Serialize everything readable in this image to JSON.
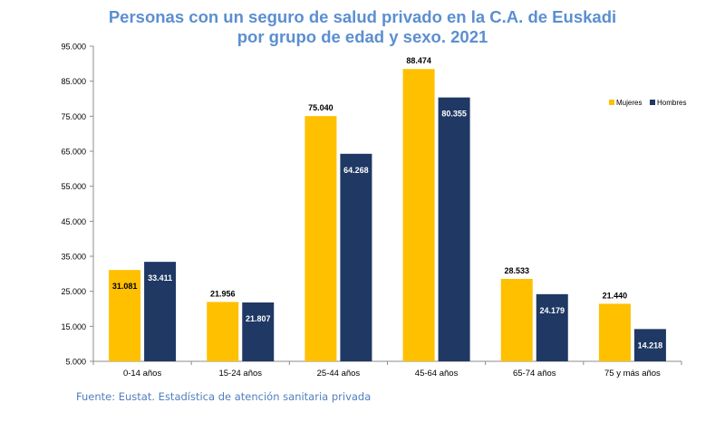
{
  "chart_data": {
    "type": "bar",
    "title_lines": [
      "Personas con un seguro de salud privado en la C.A. de Euskadi",
      "por grupo de edad y sexo. 2021"
    ],
    "categories": [
      "0-14 años",
      "15-24 años",
      "25-44 años",
      "45-64 años",
      "65-74 años",
      "75 y más años"
    ],
    "series": [
      {
        "name": "Mujeres",
        "color": "#ffc000",
        "values": [
          31081,
          21956,
          75040,
          88474,
          28533,
          21440
        ],
        "labels": [
          "31.081",
          "21.956",
          "75.040",
          "88.474",
          "28.533",
          "21.440"
        ]
      },
      {
        "name": "Hombres",
        "color": "#1f3864",
        "values": [
          33411,
          21807,
          64268,
          80355,
          24179,
          14218
        ],
        "labels": [
          "33.411",
          "21.807",
          "64.268",
          "80.355",
          "24.179",
          "14.218"
        ]
      }
    ],
    "ylim": [
      5000,
      95000
    ],
    "yticks": [
      5000,
      15000,
      25000,
      35000,
      45000,
      55000,
      65000,
      75000,
      85000,
      95000
    ],
    "ytick_labels": [
      "5.000",
      "15.000",
      "25.000",
      "35.000",
      "45.000",
      "55.000",
      "65.000",
      "75.000",
      "85.000",
      "95.000"
    ],
    "legend_position": "top-right",
    "xlabel": "",
    "ylabel": ""
  },
  "source": "Fuente: Eustat. Estadística de atención sanitaria privada"
}
